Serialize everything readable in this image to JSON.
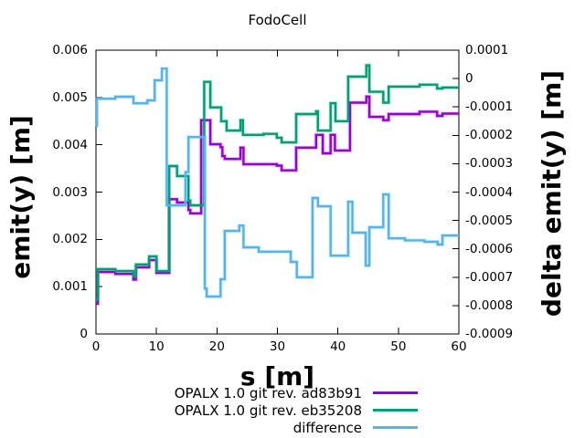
{
  "chart": {
    "title": "FodoCell",
    "xlabel": "s [m]",
    "ylabel": "emit(y) [m]",
    "y2label": "delta emit(y) [m]"
  },
  "legend": [
    {
      "label": "OPALX 1.0 git rev. ad83b91",
      "color": "#9400d3"
    },
    {
      "label": "OPALX 1.0 git rev. eb35208",
      "color": "#009e73"
    },
    {
      "label": "difference",
      "color": "#56b4e9"
    }
  ],
  "chart_data": {
    "type": "line",
    "step": true,
    "title": "FodoCell",
    "xlabel": "s [m]",
    "ylabel": "emit(y) [m]",
    "y2label": "delta emit(y) [m]",
    "x_range": [
      0,
      60
    ],
    "y_range": [
      0,
      0.006
    ],
    "y2_range": [
      -0.0009,
      0.0001
    ],
    "x_ticks": [
      0,
      10,
      20,
      30,
      40,
      50,
      60
    ],
    "y_ticks": [
      "0",
      "0.001",
      "0.002",
      "0.003",
      "0.004",
      "0.005",
      "0.006"
    ],
    "y2_ticks": [
      "0.0001",
      "0",
      "-0.0001",
      "-0.0002",
      "-0.0003",
      "-0.0004",
      "-0.0005",
      "-0.0006",
      "-0.0007",
      "-0.0008",
      "-0.0009"
    ],
    "grid": false,
    "legend_position": "below-plot",
    "series": [
      {
        "name": "OPALX 1.0 git rev. ad83b91",
        "axis": "y1",
        "color": "#9400d3",
        "points": [
          [
            0,
            0.00064
          ],
          [
            0.3,
            0.00131
          ],
          [
            3.2,
            0.00127
          ],
          [
            6.2,
            0.00115
          ],
          [
            6.6,
            0.00141
          ],
          [
            8.8,
            0.00156
          ],
          [
            10,
            0.00129
          ],
          [
            12.1,
            0.00285
          ],
          [
            13.4,
            0.00278
          ],
          [
            15.3,
            0.00262
          ],
          [
            15.6,
            0.00255
          ],
          [
            17.4,
            0.00452
          ],
          [
            18.9,
            0.00401
          ],
          [
            20.6,
            0.00395
          ],
          [
            20.9,
            0.00376
          ],
          [
            21.3,
            0.0037
          ],
          [
            23.9,
            0.00394
          ],
          [
            24.4,
            0.00359
          ],
          [
            29.9,
            0.00356
          ],
          [
            30.7,
            0.00346
          ],
          [
            33.1,
            0.00394
          ],
          [
            36.4,
            0.00421
          ],
          [
            37.5,
            0.00382
          ],
          [
            38.8,
            0.00421
          ],
          [
            39.5,
            0.00388
          ],
          [
            42,
            0.00489
          ],
          [
            44.7,
            0.00502
          ],
          [
            45.2,
            0.00459
          ],
          [
            47.5,
            0.00452
          ],
          [
            48.4,
            0.00465
          ],
          [
            53.5,
            0.0047
          ],
          [
            56.4,
            0.00461
          ],
          [
            57.3,
            0.00466
          ],
          [
            60,
            0.00466
          ]
        ]
      },
      {
        "name": "OPALX 1.0 git rev. eb35208",
        "axis": "y1",
        "color": "#009e73",
        "points": [
          [
            0,
            0.00073
          ],
          [
            0.3,
            0.00137
          ],
          [
            3.2,
            0.00133
          ],
          [
            6.2,
            0.00122
          ],
          [
            6.6,
            0.00147
          ],
          [
            8.8,
            0.00164
          ],
          [
            10,
            0.00133
          ],
          [
            12.1,
            0.00355
          ],
          [
            13.4,
            0.00334
          ],
          [
            15.3,
            0.00282
          ],
          [
            15.6,
            0.00272
          ],
          [
            17.9,
            0.00533
          ],
          [
            18.9,
            0.00479
          ],
          [
            20.7,
            0.0045
          ],
          [
            21.6,
            0.0043
          ],
          [
            23.9,
            0.00452
          ],
          [
            24.3,
            0.00421
          ],
          [
            27.7,
            0.00423
          ],
          [
            29.9,
            0.00415
          ],
          [
            30.7,
            0.00405
          ],
          [
            33.1,
            0.00465
          ],
          [
            36.4,
            0.00471
          ],
          [
            36.7,
            0.0043
          ],
          [
            38.8,
            0.00488
          ],
          [
            39.6,
            0.0045
          ],
          [
            41.7,
            0.00544
          ],
          [
            44.7,
            0.00568
          ],
          [
            45.2,
            0.00512
          ],
          [
            47.5,
            0.00489
          ],
          [
            48.4,
            0.00523
          ],
          [
            53.5,
            0.00527
          ],
          [
            56.4,
            0.00519
          ],
          [
            57.3,
            0.00521
          ],
          [
            60,
            0.00521
          ]
        ]
      },
      {
        "name": "difference",
        "axis": "y2",
        "color": "#56b4e9",
        "points": [
          [
            0,
            -0.000167
          ],
          [
            0.15,
            -7.1e-05
          ],
          [
            3.2,
            -6.4e-05
          ],
          [
            6.2,
            -8.7e-05
          ],
          [
            8.5,
            -7.7e-05
          ],
          [
            9.7,
            -6e-06
          ],
          [
            10.9,
            3.5e-05
          ],
          [
            11.7,
            -0.000447
          ],
          [
            14.8,
            -0.00033
          ],
          [
            15.3,
            -0.000206
          ],
          [
            18,
            -0.00074
          ],
          [
            18.3,
            -0.000768
          ],
          [
            20.6,
            -0.000707
          ],
          [
            21.3,
            -0.000537
          ],
          [
            23.7,
            -0.000518
          ],
          [
            24.4,
            -0.000595
          ],
          [
            26.9,
            -0.00061
          ],
          [
            32.2,
            -0.000646
          ],
          [
            33.2,
            -0.0007
          ],
          [
            35.8,
            -0.000421
          ],
          [
            36.7,
            -0.00045
          ],
          [
            38.8,
            -0.000624
          ],
          [
            41.7,
            -0.000434
          ],
          [
            42.4,
            -0.000543
          ],
          [
            44.6,
            -0.000659
          ],
          [
            45.2,
            -0.000524
          ],
          [
            47.5,
            -0.000408
          ],
          [
            48.4,
            -0.000563
          ],
          [
            51.1,
            -0.00057
          ],
          [
            54.3,
            -0.000575
          ],
          [
            56.5,
            -0.000585
          ],
          [
            57.3,
            -0.000553
          ],
          [
            60,
            -0.000553
          ]
        ]
      }
    ]
  }
}
